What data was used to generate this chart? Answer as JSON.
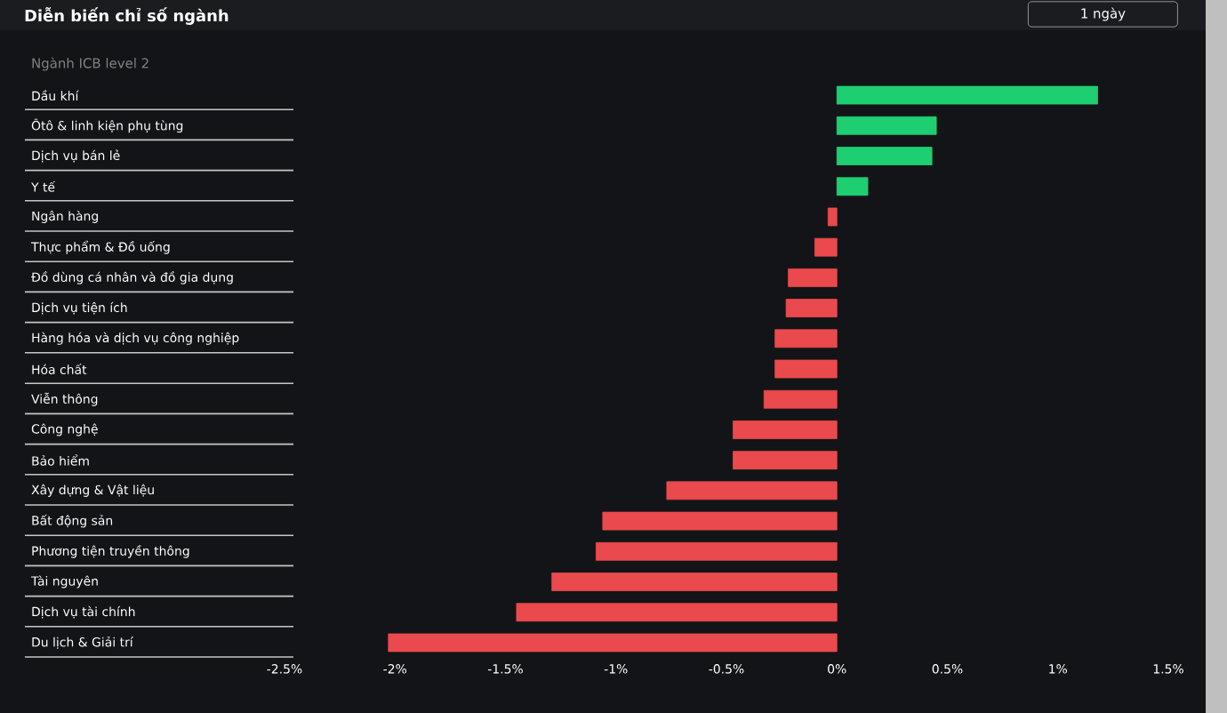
{
  "chart_data": {
    "type": "bar",
    "orientation": "horizontal",
    "title": "Diễn biến chỉ số ngành",
    "subtitle": "Ngành ICB level 2",
    "annotations": [
      "1 ngày"
    ],
    "categories": [
      "Dầu khí",
      "Ôtô & linh kiện phụ tùng",
      "Dịch vụ bán lẻ",
      "Y tế",
      "Ngân hàng",
      "Thực phẩm & Đồ uống",
      "Đồ dùng cá nhân và đồ gia dụng",
      "Dịch vụ tiện ích",
      "Hàng hóa và dịch vụ công nghiệp",
      "Hóa chất",
      "Viễn thông",
      "Công nghệ",
      "Bảo hiểm",
      "Xây dựng & Vật liệu",
      "Bất động sản",
      "Phương tiện truyền thông",
      "Tài nguyên",
      "Dịch vụ tài chính",
      "Du lịch & Giải trí"
    ],
    "values": [
      1.18,
      0.45,
      0.43,
      0.14,
      -0.04,
      -0.1,
      -0.22,
      -0.23,
      -0.28,
      -0.28,
      -0.33,
      -0.47,
      -0.47,
      -0.77,
      -1.06,
      -1.09,
      -1.29,
      -1.45,
      -2.03
    ],
    "colors": [
      "#1ecf72",
      "#1ecf72",
      "#1ecf72",
      "#1ecf72",
      "#ea4a4d",
      "#ea4a4d",
      "#ea4a4d",
      "#ea4a4d",
      "#ea4a4d",
      "#ea4a4d",
      "#ea4a4d",
      "#ea4a4d",
      "#ea4a4d",
      "#ea4a4d",
      "#ea4a4d",
      "#ea4a4d",
      "#ea4a4d",
      "#ea4a4d",
      "#ea4a4d"
    ],
    "xlim": [
      -2.5,
      1.5
    ],
    "xticks": [
      {
        "value": -2.5,
        "label": "-2.5%"
      },
      {
        "value": -2,
        "label": "-2%"
      },
      {
        "value": -1.5,
        "label": "-1.5%"
      },
      {
        "value": -1,
        "label": "-1%"
      },
      {
        "value": -0.5,
        "label": "-0.5%"
      },
      {
        "value": 0,
        "label": "0%"
      },
      {
        "value": 0.5,
        "label": "0.5%"
      },
      {
        "value": 1,
        "label": "1%"
      },
      {
        "value": 1.5,
        "label": "1.5%"
      }
    ],
    "grid": false
  }
}
